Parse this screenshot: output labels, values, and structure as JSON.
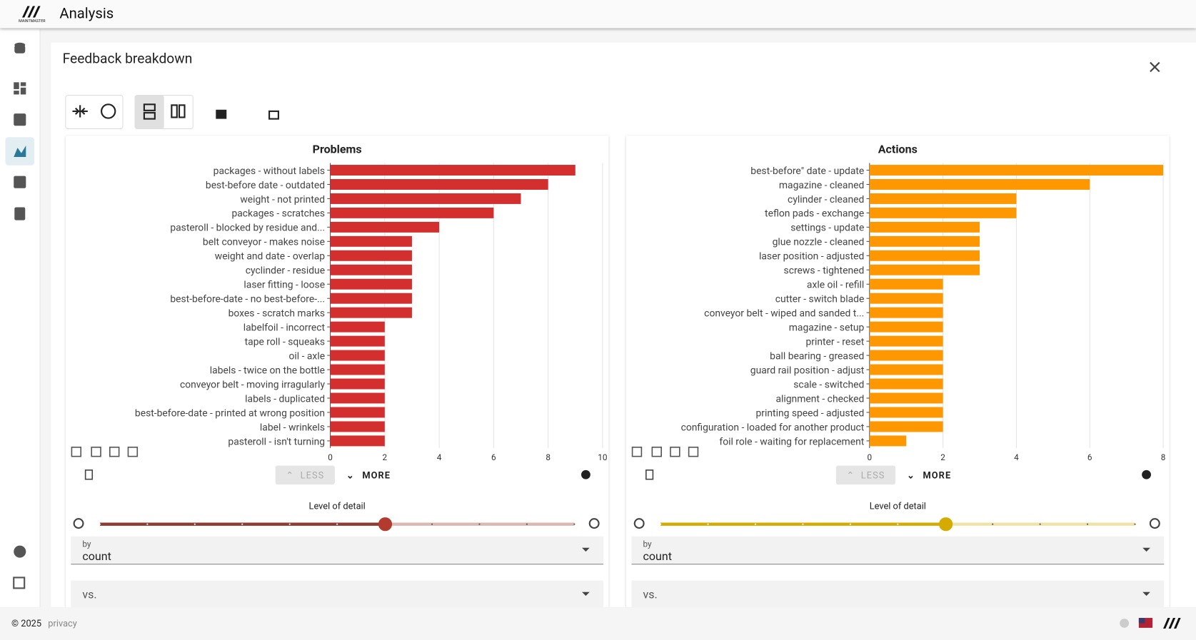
{
  "header": {
    "logo": "MAINTMASTER",
    "title": "Analysis"
  },
  "panel": {
    "title": "Feedback breakdown"
  },
  "chart_data": [
    {
      "type": "bar",
      "orientation": "horizontal",
      "title": "Problems",
      "color": "#d32f2f",
      "categories": [
        "packages - without labels",
        "best-before date - outdated",
        "weight - not printed",
        "packages - scratches",
        "pasteroll - blocked by residue and...",
        "belt conveyor - makes noise",
        "weight and date - overlap",
        "cyclinder - residue",
        "laser fitting - loose",
        "best-before-date - no best-before-...",
        "boxes - scratch marks",
        "labelfoil - incorrect",
        "tape roll - squeaks",
        "oil - axle",
        "labels - twice on the bottle",
        "conveyor belt - moving irragularly",
        "labels - duplicated",
        "best-before-date - printed at wrong position",
        "label - wrinkels",
        "pasteroll - isn't turning"
      ],
      "values": [
        9,
        8,
        7,
        6,
        4,
        3,
        3,
        3,
        3,
        3,
        3,
        2,
        2,
        2,
        2,
        2,
        2,
        2,
        2,
        2
      ],
      "xlim": [
        0,
        10
      ],
      "xticks": [
        0,
        2,
        4,
        6,
        8,
        10
      ],
      "grid": true
    },
    {
      "type": "bar",
      "orientation": "horizontal",
      "title": "Actions",
      "color": "#ff9800",
      "categories": [
        "best-before\" date - update",
        "magazine - cleaned",
        "cylinder - cleaned",
        "teflon pads - exchange",
        "settings - update",
        "glue nozzle - cleaned",
        "laser position - adjusted",
        "screws - tightened",
        "axle oil - refill",
        "cutter - switch blade",
        "conveyor belt - wiped and sanded t...",
        "magazine - setup",
        "printer - reset",
        "ball bearing - greased",
        "guard rail position - adjust",
        "scale - switched",
        "alignment - checked",
        "printing speed - adjusted",
        "configuration - loaded for another product",
        "foil role - waiting for replacement"
      ],
      "values": [
        8,
        6,
        4,
        4,
        3,
        3,
        3,
        3,
        2,
        2,
        2,
        2,
        2,
        2,
        2,
        2,
        2,
        2,
        2,
        1
      ],
      "xlim": [
        0,
        8
      ],
      "xticks": [
        0,
        2,
        4,
        6,
        8
      ],
      "grid": true
    }
  ],
  "controls": [
    {
      "less": "LESS",
      "more": "MORE",
      "level_of_detail": "Level of detail",
      "by_label": "by",
      "by_value": "count",
      "vs_label": "vs."
    },
    {
      "less": "LESS",
      "more": "MORE",
      "level_of_detail": "Level of detail",
      "by_label": "by",
      "by_value": "count",
      "vs_label": "vs."
    }
  ],
  "footer": {
    "copyright": "© 2025",
    "privacy": "privacy"
  }
}
